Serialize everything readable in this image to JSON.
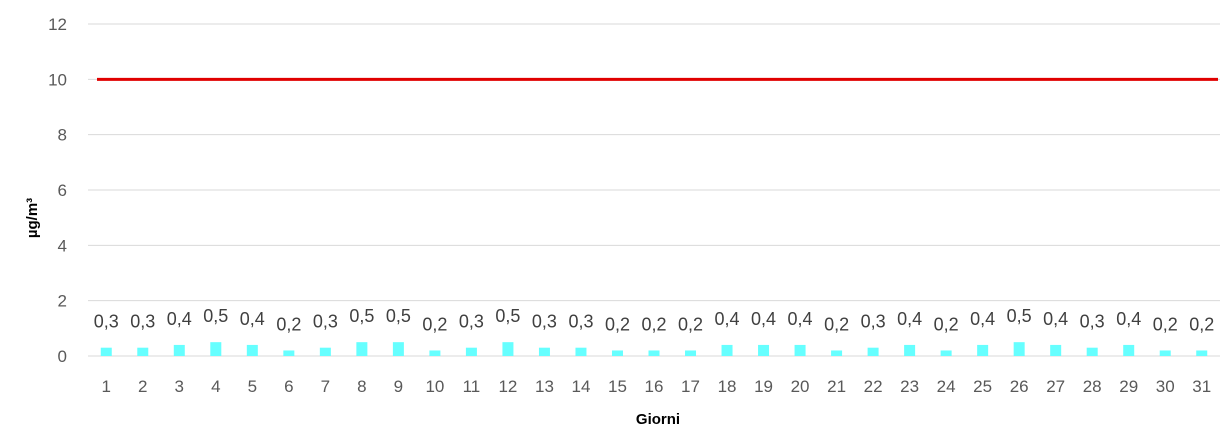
{
  "chart_data": {
    "type": "bar",
    "xlabel": "Giorni",
    "ylabel": "µg/m³",
    "ylim": [
      0,
      12
    ],
    "yticks": [
      "0",
      "2",
      "4",
      "6",
      "8",
      "10",
      "12"
    ],
    "grid": true,
    "categories": [
      "1",
      "2",
      "3",
      "4",
      "5",
      "6",
      "7",
      "8",
      "9",
      "10",
      "11",
      "12",
      "13",
      "14",
      "15",
      "16",
      "17",
      "18",
      "19",
      "20",
      "21",
      "22",
      "23",
      "24",
      "25",
      "26",
      "27",
      "28",
      "29",
      "30",
      "31"
    ],
    "values": [
      0.3,
      0.3,
      0.4,
      0.5,
      0.4,
      0.2,
      0.3,
      0.5,
      0.5,
      0.2,
      0.3,
      0.5,
      0.3,
      0.3,
      0.2,
      0.2,
      0.2,
      0.4,
      0.4,
      0.4,
      0.2,
      0.3,
      0.4,
      0.2,
      0.4,
      0.5,
      0.4,
      0.3,
      0.4,
      0.2,
      0.2
    ],
    "value_labels": [
      "0,3",
      "0,3",
      "0,4",
      "0,5",
      "0,4",
      "0,2",
      "0,3",
      "0,5",
      "0,5",
      "0,2",
      "0,3",
      "0,5",
      "0,3",
      "0,3",
      "0,2",
      "0,2",
      "0,2",
      "0,4",
      "0,4",
      "0,4",
      "0,2",
      "0,3",
      "0,4",
      "0,2",
      "0,4",
      "0,5",
      "0,4",
      "0,3",
      "0,4",
      "0,2",
      "0,2"
    ],
    "limit_line": {
      "value": 10
    },
    "colors": {
      "bars": "#66ffff",
      "limit_line": "#e00000",
      "grid": "#d9d9d9"
    }
  }
}
